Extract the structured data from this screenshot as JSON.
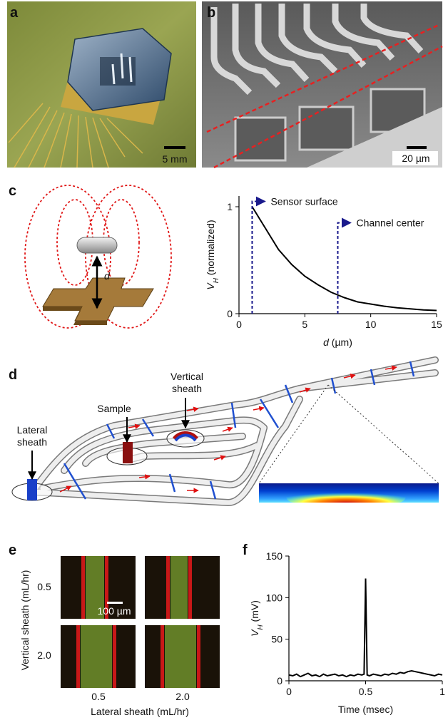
{
  "panel_labels": [
    "a",
    "b",
    "c",
    "d",
    "e",
    "f"
  ],
  "panel_a": {
    "scale_bar": "5 mm"
  },
  "panel_b": {
    "scale_bar": "20 µm"
  },
  "panel_c": {
    "distance_label": "d"
  },
  "panel_d": {
    "lateral_sheath": [
      "Lateral",
      "sheath"
    ],
    "sample": "Sample",
    "vertical_sheath": [
      "Vertical",
      "sheath"
    ]
  },
  "panel_e": {
    "ylabel": "Vertical sheath (mL/hr)",
    "xlabel": "Lateral sheath (mL/hr)",
    "row_labels": [
      "0.5",
      "2.0"
    ],
    "col_labels": [
      "0.5",
      "2.0"
    ],
    "scale_bar": "100 µm"
  },
  "chart_data": [
    {
      "type": "line",
      "xlabel": [
        "d",
        " (µm)"
      ],
      "ylabel": [
        "V",
        "H",
        " (normalized)"
      ],
      "x": [
        1,
        2,
        3,
        4,
        5,
        6,
        7,
        8,
        9,
        10,
        11,
        12,
        13,
        14,
        15
      ],
      "values": [
        1.0,
        0.8,
        0.6,
        0.46,
        0.35,
        0.27,
        0.2,
        0.15,
        0.11,
        0.09,
        0.07,
        0.055,
        0.045,
        0.035,
        0.03
      ],
      "color": "#000000",
      "xlim": [
        0,
        15
      ],
      "xticks": [
        0,
        5,
        10,
        15
      ],
      "ylim": [
        0,
        1.1
      ],
      "yticks": [
        0,
        1
      ],
      "annotations": [
        {
          "text": "Sensor surface",
          "x": 1,
          "y": 1.05,
          "color": "#1a1a8c"
        },
        {
          "text": "Channel center",
          "x": 7.5,
          "y": 0.85,
          "color": "#1a1a8c"
        }
      ]
    },
    {
      "type": "line",
      "xlabel": [
        "Time (msec)"
      ],
      "ylabel": [
        "V",
        "H",
        " (mV)"
      ],
      "x": [
        0,
        0.025,
        0.05,
        0.075,
        0.1,
        0.125,
        0.15,
        0.175,
        0.2,
        0.225,
        0.25,
        0.275,
        0.3,
        0.325,
        0.35,
        0.375,
        0.4,
        0.425,
        0.45,
        0.475,
        0.49,
        0.5,
        0.51,
        0.525,
        0.55,
        0.575,
        0.6,
        0.625,
        0.65,
        0.675,
        0.7,
        0.725,
        0.75,
        0.775,
        0.8,
        0.825,
        0.85,
        0.875,
        0.9,
        0.925,
        0.95,
        0.975,
        1
      ],
      "values": [
        7,
        6,
        8,
        5,
        7,
        9,
        6,
        7,
        5,
        8,
        6,
        7,
        8,
        6,
        7,
        5,
        7,
        6,
        8,
        7,
        8,
        123,
        7,
        6,
        8,
        7,
        6,
        8,
        7,
        9,
        8,
        10,
        9,
        11,
        12,
        11,
        10,
        9,
        8,
        7,
        6,
        8,
        7
      ],
      "color": "#000000",
      "xlim": [
        0,
        1
      ],
      "xticks": [
        0,
        0.5,
        1
      ],
      "ylim": [
        0,
        150
      ],
      "yticks": [
        0,
        50,
        100,
        150
      ]
    }
  ]
}
